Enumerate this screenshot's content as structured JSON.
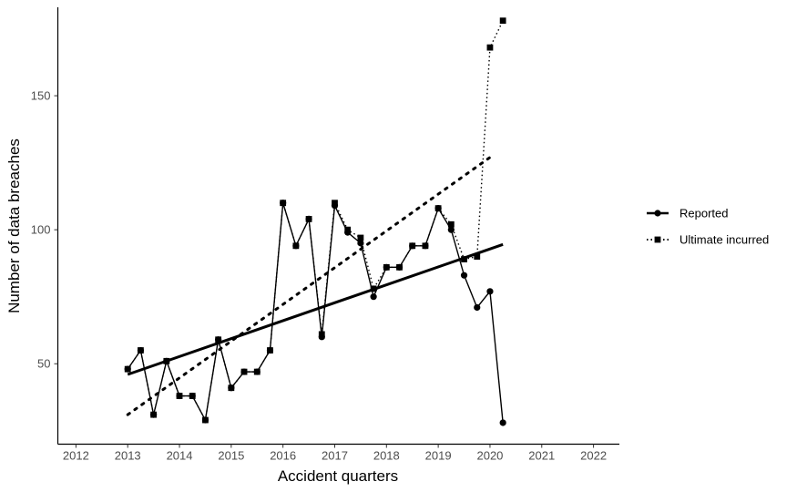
{
  "chart_data": {
    "type": "line",
    "xlabel": "Accident quarters",
    "ylabel": "Number of data breaches",
    "xlim": [
      2011.65,
      2022.5
    ],
    "ylim": [
      20,
      183
    ],
    "x_ticks": [
      2012,
      2013,
      2014,
      2015,
      2016,
      2017,
      2018,
      2019,
      2020,
      2021,
      2022
    ],
    "y_ticks": [
      50,
      100,
      150
    ],
    "grid": false,
    "legend_position": "right",
    "x": [
      2013.0,
      2013.25,
      2013.5,
      2013.75,
      2014.0,
      2014.25,
      2014.5,
      2014.75,
      2015.0,
      2015.25,
      2015.5,
      2015.75,
      2016.0,
      2016.25,
      2016.5,
      2016.75,
      2017.0,
      2017.25,
      2017.5,
      2017.75,
      2018.0,
      2018.25,
      2018.5,
      2018.75,
      2019.0,
      2019.25,
      2019.5,
      2019.75,
      2020.0,
      2020.25
    ],
    "series": [
      {
        "name": "Reported",
        "marker": "circle",
        "line": "solid",
        "values": [
          48,
          55,
          31,
          51,
          38,
          38,
          29,
          59,
          41,
          47,
          47,
          55,
          110,
          94,
          104,
          60,
          109,
          99,
          95,
          75,
          86,
          86,
          94,
          94,
          108,
          100,
          83,
          71,
          77,
          28
        ],
        "trend": {
          "x": [
            2013.0,
            2020.25
          ],
          "y": [
            46,
            94.5
          ]
        }
      },
      {
        "name": "Ultimate incurred",
        "marker": "square",
        "line": "dotted",
        "values": [
          48,
          55,
          31,
          51,
          38,
          38,
          29,
          59,
          41,
          47,
          47,
          55,
          110,
          94,
          104,
          61,
          110,
          100,
          97,
          78,
          86,
          86,
          94,
          94,
          108,
          102,
          89,
          90,
          168,
          178
        ],
        "trend": {
          "x": [
            2013.0,
            2020.0
          ],
          "y": [
            31,
            127
          ]
        }
      }
    ]
  }
}
